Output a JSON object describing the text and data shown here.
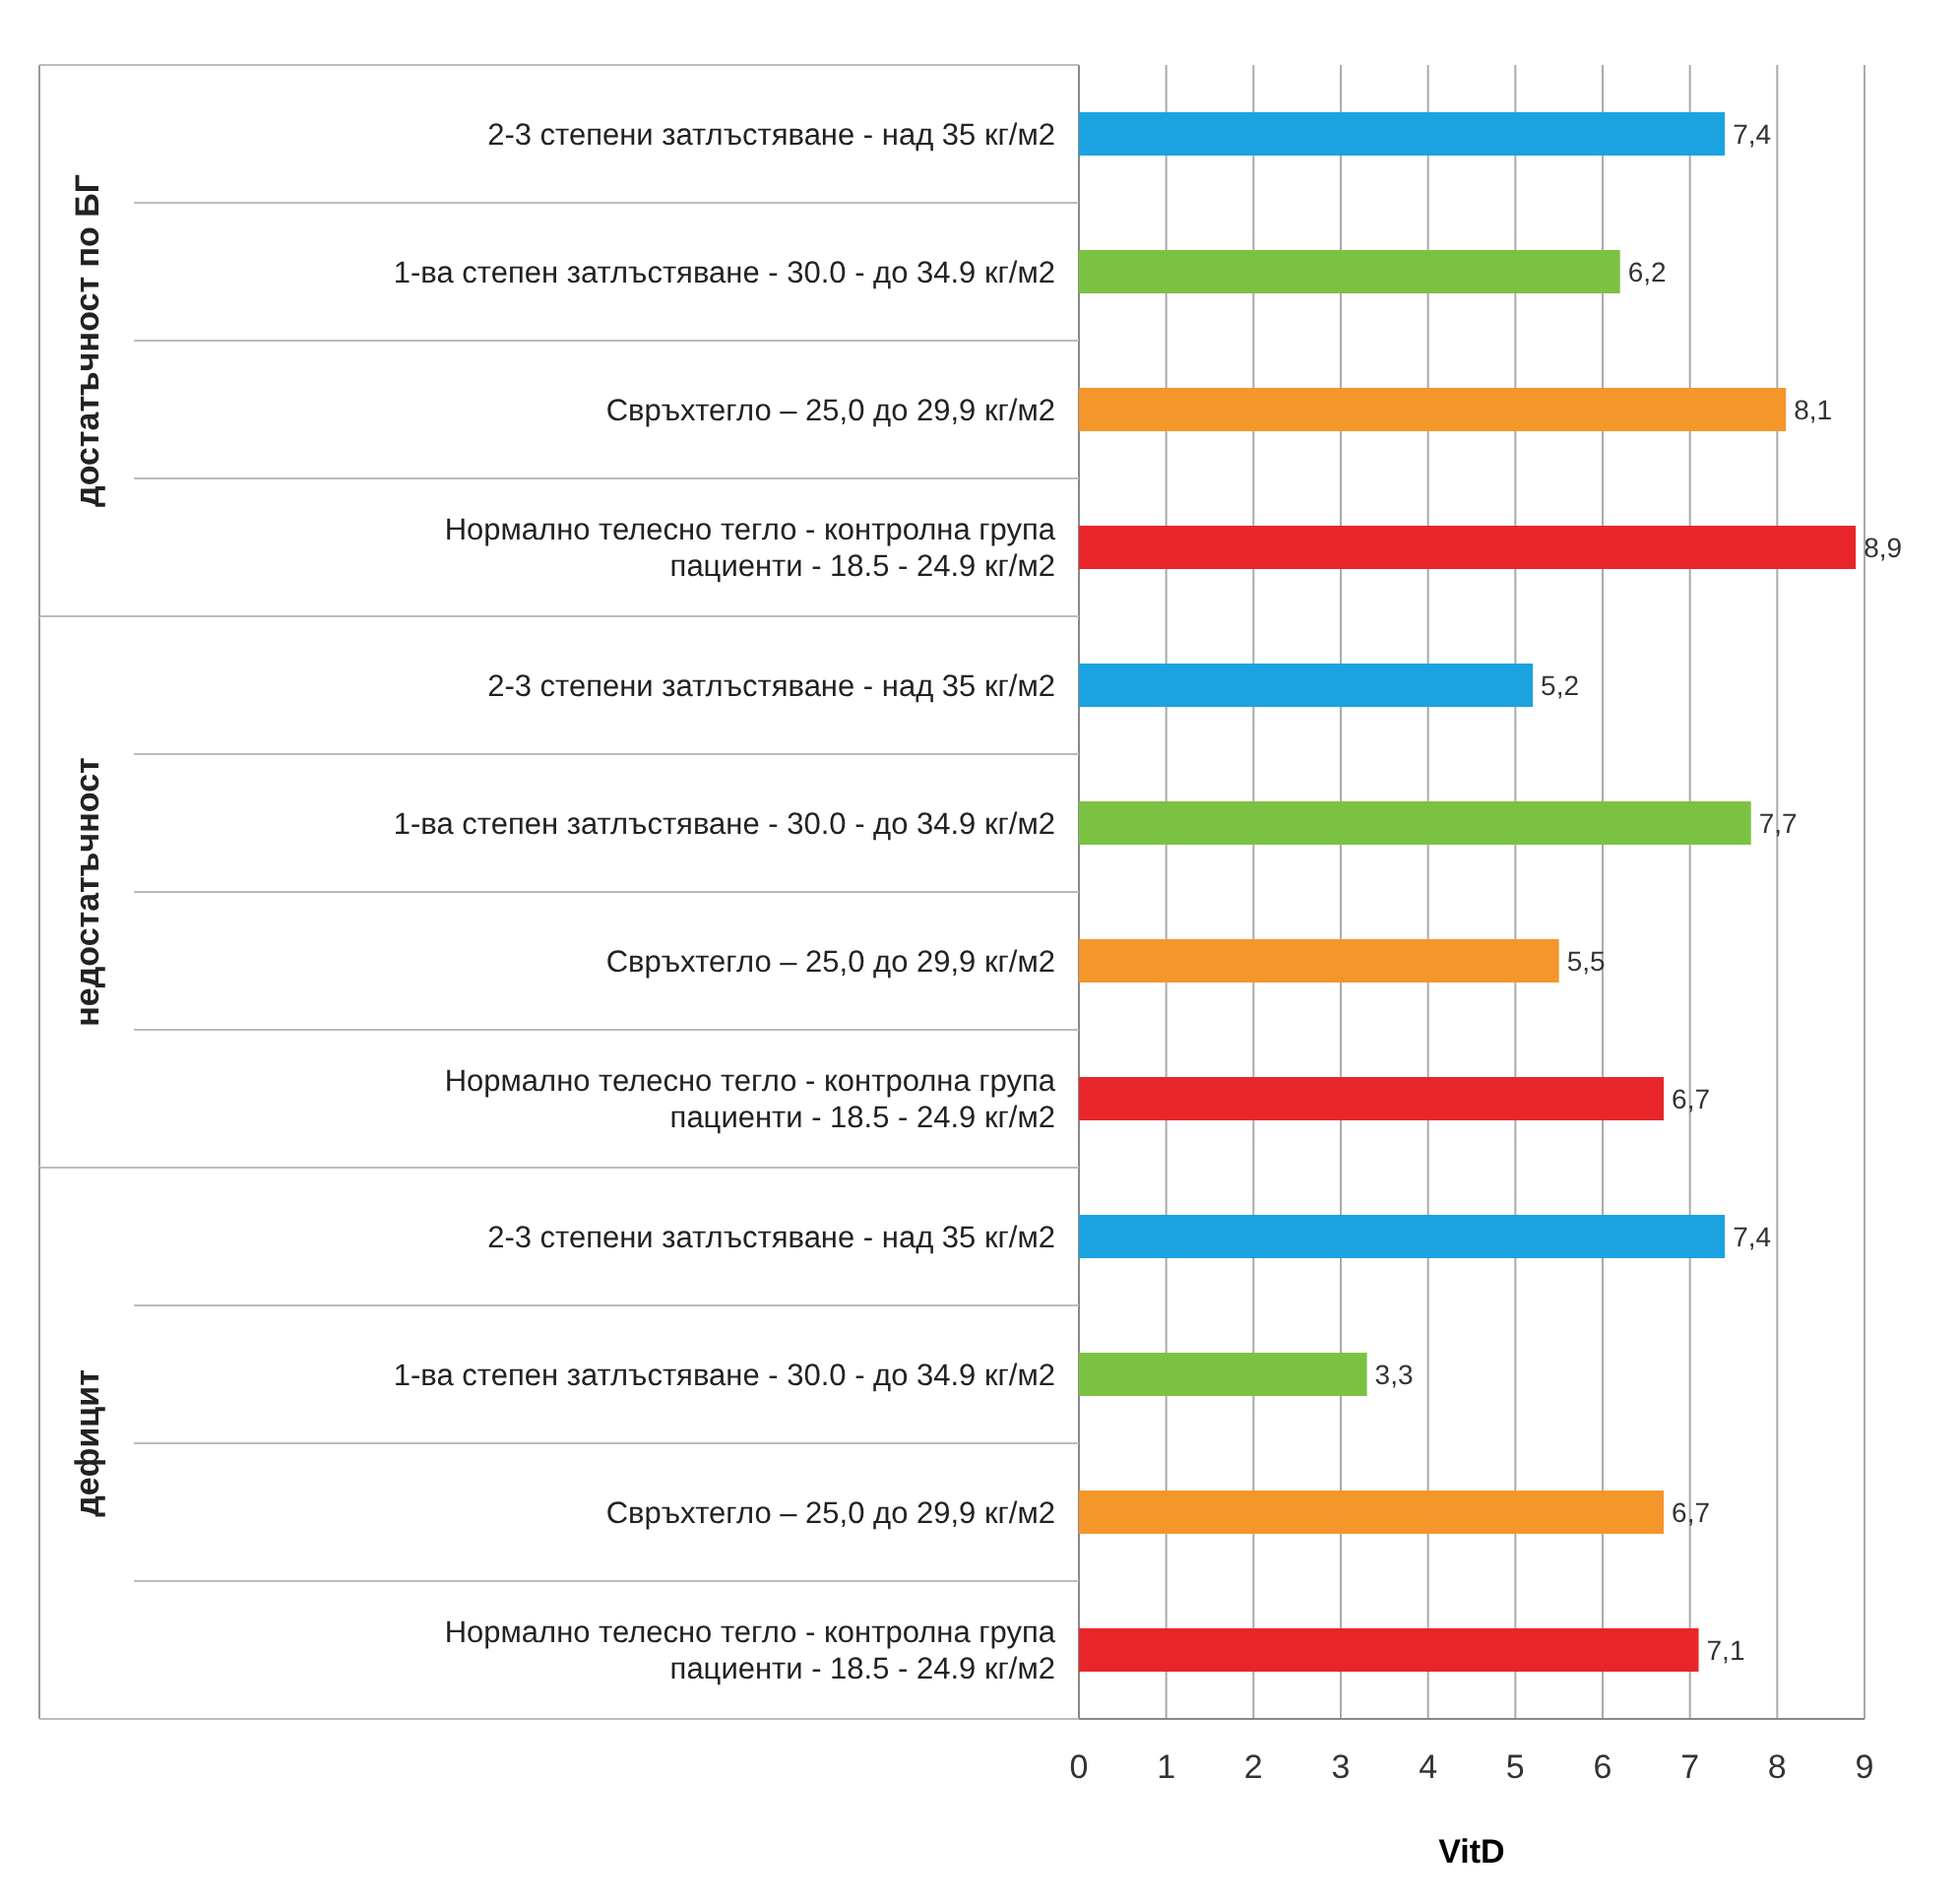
{
  "chart_data": {
    "type": "bar",
    "orientation": "horizontal",
    "xlabel": "VitD",
    "categories": [
      "2-3 степени затлъстяване - над 35 кг/м2",
      "1-ва степен затлъстяване - 30.0 - до 34.9 кг/м2",
      "Свръхтегло – 25,0 до 29,9 кг/м2",
      "Нормално телесно тегло - контролна група пациенти - 18.5 - 24.9 кг/м2",
      "2-3 степени затлъстяване - над 35 кг/м2",
      "1-ва степен затлъстяване - 30.0 - до 34.9 кг/м2",
      "Свръхтегло – 25,0 до 29,9 кг/м2",
      "Нормално телесно тегло - контролна група пациенти - 18.5 - 24.9 кг/м2",
      "2-3 степени затлъстяване - над 35 кг/м2",
      "1-ва степен затлъстяване - 30.0 - до 34.9 кг/м2",
      "Свръхтегло – 25,0 до 29,9 кг/м2",
      "Нормално телесно тегло - контролна група пациенти - 18.5 - 24.9 кг/м2"
    ],
    "values": [
      7.4,
      6.2,
      8.1,
      8.9,
      5.2,
      7.7,
      5.5,
      6.7,
      7.4,
      3.3,
      6.7,
      7.1
    ],
    "value_labels": [
      "7,4",
      "6,2",
      "8,1",
      "8,9",
      "5,2",
      "7,7",
      "5,5",
      "6,7",
      "7,4",
      "3,3",
      "6,7",
      "7,1"
    ],
    "colors": [
      "#1aa3e0",
      "#7cc242",
      "#f5962a",
      "#e8262a",
      "#1aa3e0",
      "#7cc242",
      "#f5962a",
      "#e8262a",
      "#1aa3e0",
      "#7cc242",
      "#f5962a",
      "#e8262a"
    ],
    "annotations": [
      "достатъчност по БГ",
      "недостатъчност",
      "дефицит"
    ],
    "xlim": [
      0,
      9
    ],
    "xticks": [
      0,
      1,
      2,
      3,
      4,
      5,
      6,
      7,
      8,
      9
    ],
    "grid": "x"
  }
}
